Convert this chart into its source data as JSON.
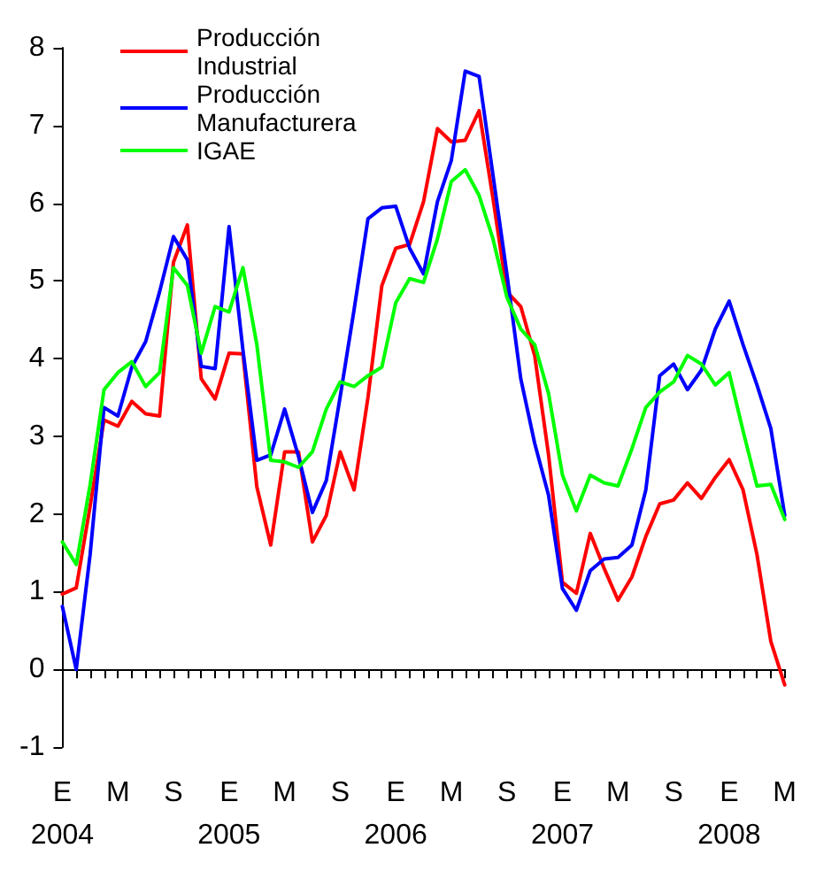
{
  "chart_data": {
    "type": "line",
    "categories": [
      "E\n2004",
      null,
      null,
      null,
      "M",
      null,
      null,
      null,
      "S",
      null,
      null,
      null,
      "E\n2005",
      null,
      null,
      null,
      "M",
      null,
      null,
      null,
      "S",
      null,
      null,
      null,
      "E\n2006",
      null,
      null,
      null,
      "M",
      null,
      null,
      null,
      "S",
      null,
      null,
      null,
      "E\n2007",
      null,
      null,
      null,
      "M",
      null,
      null,
      null,
      "S",
      null,
      null,
      null,
      "E\n2008",
      null,
      null,
      null,
      "M"
    ],
    "series": [
      {
        "name": "Producción Industrial",
        "color": "#ff0000",
        "values": [
          0.97,
          1.05,
          2.1,
          3.21,
          3.13,
          3.45,
          3.29,
          3.26,
          5.24,
          5.72,
          3.74,
          3.48,
          4.07,
          4.06,
          2.35,
          1.6,
          2.8,
          2.8,
          1.64,
          1.98,
          2.8,
          2.31,
          3.5,
          4.94,
          5.42,
          5.47,
          6.02,
          6.96,
          6.79,
          6.81,
          7.19,
          6.06,
          4.86,
          4.67,
          4.04,
          2.76,
          1.12,
          0.98,
          1.75,
          1.3,
          0.89,
          1.19,
          1.71,
          2.13,
          2.18,
          2.4,
          2.2,
          2.47,
          2.7,
          2.31,
          1.48,
          0.36,
          -0.2
        ]
      },
      {
        "name": "Producción Manufacturera",
        "color": "#0000ff",
        "values": [
          0.81,
          0.0,
          1.48,
          3.37,
          3.26,
          3.89,
          4.22,
          4.86,
          5.57,
          5.27,
          3.9,
          3.87,
          5.7,
          4.11,
          2.69,
          2.76,
          3.35,
          2.74,
          2.02,
          2.43,
          3.51,
          4.63,
          5.8,
          5.94,
          5.96,
          5.42,
          5.09,
          6.02,
          6.55,
          7.7,
          7.63,
          6.36,
          5.09,
          3.74,
          2.91,
          2.24,
          1.04,
          0.76,
          1.27,
          1.42,
          1.44,
          1.6,
          2.31,
          3.78,
          3.93,
          3.6,
          3.85,
          4.38,
          4.74,
          4.18,
          3.66,
          3.1,
          1.98
        ]
      },
      {
        "name": "IGAE",
        "color": "#00ff00",
        "values": [
          1.64,
          1.35,
          2.38,
          3.6,
          3.82,
          3.96,
          3.64,
          3.82,
          5.17,
          4.94,
          4.07,
          4.67,
          4.6,
          5.17,
          4.18,
          2.69,
          2.67,
          2.6,
          2.8,
          3.35,
          3.7,
          3.64,
          3.78,
          3.89,
          4.72,
          5.03,
          4.98,
          5.54,
          6.28,
          6.43,
          6.1,
          5.54,
          4.79,
          4.38,
          4.18,
          3.55,
          2.5,
          2.04,
          2.5,
          2.4,
          2.36,
          2.84,
          3.37,
          3.57,
          3.7,
          4.04,
          3.93,
          3.66,
          3.82,
          3.07,
          2.36,
          2.38,
          1.93
        ]
      }
    ],
    "ylim": [
      -1,
      8
    ],
    "yticks": [
      -1,
      0,
      1,
      2,
      3,
      4,
      5,
      6,
      7,
      8
    ],
    "legend": "top left",
    "line_style": "solid"
  }
}
